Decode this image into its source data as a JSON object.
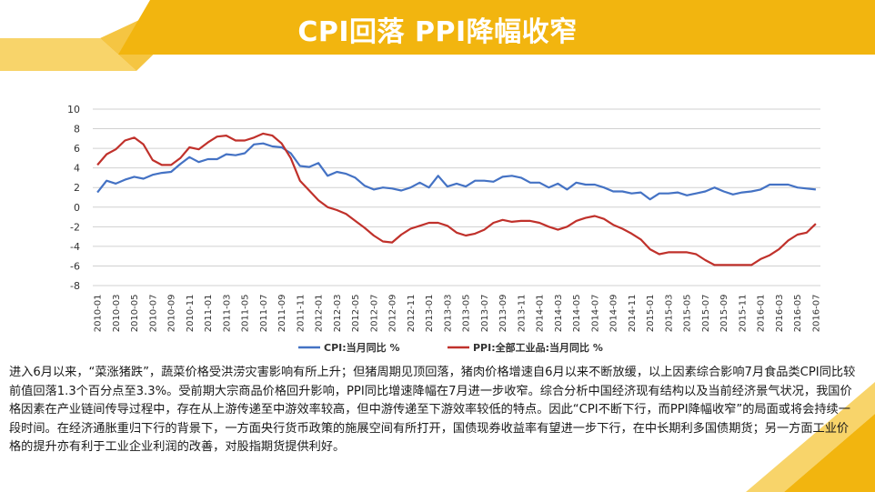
{
  "slide_title": "CPI回落 PPI降幅收窄",
  "body_text": "进入6月以来，“菜涨猪跌”，蔬菜价格受洪涝灾害影响有所上升；但猪周期见顶回落，猪肉价格增速自6月以来不断放缓，以上因素综合影响7月食品类CPI同比较前值回落1.3个百分点至3.3%。受前期大宗商品价格回升影响，PPI同比增速降幅在7月进一步收窄。综合分析中国经济现有结构以及当前经济景气状况，我国价格因素在产业链间传导过程中，存在从上游传递至中游效率较高，但中游传递至下游效率较低的特点。因此“CPI不断下行，而PPI降幅收窄”的局面或将会持续一段时间。在经济通胀重归下行的背景下，一方面央行货币政策的施展空间有所打开，国债现券收益率有望进一步下行，在中长期利多国债期货；另一方面工业价格的提升亦有利于工业企业利润的改善，对股指期货提供利好。",
  "colors": {
    "accent_gold": "#F2B50F",
    "cpi": "#4472C4",
    "ppi": "#C0312B"
  },
  "chart_data": {
    "type": "line",
    "ylim": [
      -8,
      10
    ],
    "yticks": [
      -8,
      -6,
      -4,
      -2,
      0,
      2,
      4,
      6,
      8,
      10
    ],
    "grid": "horizontal",
    "legend_position": "bottom",
    "x_tick_labels": [
      "2010-01",
      "2010-03",
      "2010-05",
      "2010-07",
      "2010-09",
      "2010-11",
      "2011-01",
      "2011-03",
      "2011-05",
      "2011-07",
      "2011-09",
      "2011-11",
      "2012-01",
      "2012-03",
      "2012-05",
      "2012-07",
      "2012-09",
      "2012-11",
      "2013-01",
      "2013-03",
      "2013-05",
      "2013-07",
      "2013-09",
      "2013-11",
      "2014-01",
      "2014-03",
      "2014-05",
      "2014-07",
      "2014-09",
      "2014-11",
      "2015-01",
      "2015-03",
      "2015-05",
      "2015-07",
      "2015-09",
      "2015-11",
      "2016-01",
      "2016-03",
      "2016-05",
      "2016-07"
    ],
    "x": [
      "2010-01",
      "2010-02",
      "2010-03",
      "2010-04",
      "2010-05",
      "2010-06",
      "2010-07",
      "2010-08",
      "2010-09",
      "2010-10",
      "2010-11",
      "2010-12",
      "2011-01",
      "2011-02",
      "2011-03",
      "2011-04",
      "2011-05",
      "2011-06",
      "2011-07",
      "2011-08",
      "2011-09",
      "2011-10",
      "2011-11",
      "2011-12",
      "2012-01",
      "2012-02",
      "2012-03",
      "2012-04",
      "2012-05",
      "2012-06",
      "2012-07",
      "2012-08",
      "2012-09",
      "2012-10",
      "2012-11",
      "2012-12",
      "2013-01",
      "2013-02",
      "2013-03",
      "2013-04",
      "2013-05",
      "2013-06",
      "2013-07",
      "2013-08",
      "2013-09",
      "2013-10",
      "2013-11",
      "2013-12",
      "2014-01",
      "2014-02",
      "2014-03",
      "2014-04",
      "2014-05",
      "2014-06",
      "2014-07",
      "2014-08",
      "2014-09",
      "2014-10",
      "2014-11",
      "2014-12",
      "2015-01",
      "2015-02",
      "2015-03",
      "2015-04",
      "2015-05",
      "2015-06",
      "2015-07",
      "2015-08",
      "2015-09",
      "2015-10",
      "2015-11",
      "2015-12",
      "2016-01",
      "2016-02",
      "2016-03",
      "2016-04",
      "2016-05",
      "2016-06",
      "2016-07"
    ],
    "series": [
      {
        "name": "CPI:当月同比 %",
        "color": "#4472C4",
        "values": [
          1.5,
          2.7,
          2.4,
          2.8,
          3.1,
          2.9,
          3.3,
          3.5,
          3.6,
          4.4,
          5.1,
          4.6,
          4.9,
          4.9,
          5.4,
          5.3,
          5.5,
          6.4,
          6.5,
          6.2,
          6.1,
          5.5,
          4.2,
          4.1,
          4.5,
          3.2,
          3.6,
          3.4,
          3.0,
          2.2,
          1.8,
          2.0,
          1.9,
          1.7,
          2.0,
          2.5,
          2.0,
          3.2,
          2.1,
          2.4,
          2.1,
          2.7,
          2.7,
          2.6,
          3.1,
          3.2,
          3.0,
          2.5,
          2.5,
          2.0,
          2.4,
          1.8,
          2.5,
          2.3,
          2.3,
          2.0,
          1.6,
          1.6,
          1.4,
          1.5,
          0.8,
          1.4,
          1.4,
          1.5,
          1.2,
          1.4,
          1.6,
          2.0,
          1.6,
          1.3,
          1.5,
          1.6,
          1.8,
          2.3,
          2.3,
          2.3,
          2.0,
          1.9,
          1.8
        ]
      },
      {
        "name": "PPI:全部工业品:当月同比 %",
        "color": "#C0312B",
        "values": [
          4.3,
          5.4,
          5.9,
          6.8,
          7.1,
          6.4,
          4.8,
          4.3,
          4.3,
          5.0,
          6.1,
          5.9,
          6.6,
          7.2,
          7.3,
          6.8,
          6.8,
          7.1,
          7.5,
          7.3,
          6.5,
          5.0,
          2.7,
          1.7,
          0.7,
          0.0,
          -0.3,
          -0.7,
          -1.4,
          -2.1,
          -2.9,
          -3.5,
          -3.6,
          -2.8,
          -2.2,
          -1.9,
          -1.6,
          -1.6,
          -1.9,
          -2.6,
          -2.9,
          -2.7,
          -2.3,
          -1.6,
          -1.3,
          -1.5,
          -1.4,
          -1.4,
          -1.6,
          -2.0,
          -2.3,
          -2.0,
          -1.4,
          -1.1,
          -0.9,
          -1.2,
          -1.8,
          -2.2,
          -2.7,
          -3.3,
          -4.3,
          -4.8,
          -4.6,
          -4.6,
          -4.6,
          -4.8,
          -5.4,
          -5.9,
          -5.9,
          -5.9,
          -5.9,
          -5.9,
          -5.3,
          -4.9,
          -4.3,
          -3.4,
          -2.8,
          -2.6,
          -1.7
        ]
      }
    ]
  }
}
